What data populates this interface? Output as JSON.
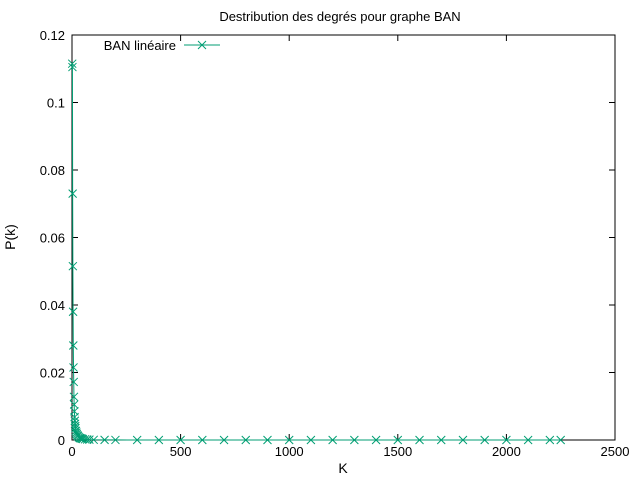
{
  "chart_data": {
    "type": "line",
    "title": "Destribution des degrés pour graphe BAN",
    "xlabel": "K",
    "ylabel": "P(k)",
    "xlim": [
      0,
      2500
    ],
    "ylim": [
      0,
      0.12
    ],
    "xticks": [
      0,
      500,
      1000,
      1500,
      2000,
      2500
    ],
    "xtick_labels": [
      "0",
      "500",
      "1000",
      "1500",
      "2000",
      "2500"
    ],
    "yticks": [
      0,
      0.02,
      0.04,
      0.06,
      0.08,
      0.1,
      0.12
    ],
    "ytick_labels": [
      "0",
      "0.02",
      "0.04",
      "0.06",
      "0.08",
      "0.1",
      "0.12"
    ],
    "legend_position": "top-left",
    "series": [
      {
        "name": "BAN linéaire",
        "color": "#009e73",
        "marker": "x",
        "x": [
          1,
          2,
          3,
          4,
          5,
          6,
          7,
          8,
          9,
          10,
          11,
          12,
          13,
          14,
          15,
          16,
          18,
          20,
          22,
          25,
          28,
          32,
          36,
          40,
          45,
          50,
          60,
          70,
          80,
          100,
          150,
          200,
          300,
          400,
          500,
          600,
          700,
          800,
          900,
          1000,
          1100,
          1200,
          1300,
          1400,
          1500,
          1600,
          1700,
          1800,
          1900,
          2000,
          2100,
          2200,
          2250
        ],
        "y": [
          0.1115,
          0.1105,
          0.073,
          0.0515,
          0.038,
          0.028,
          0.0215,
          0.0172,
          0.0128,
          0.0105,
          0.0085,
          0.0068,
          0.0057,
          0.0048,
          0.0041,
          0.0035,
          0.0027,
          0.0022,
          0.0018,
          0.0014,
          0.0011,
          0.0008,
          0.0006,
          0.0005,
          0.0004,
          0.0003,
          0.0002,
          0.00015,
          0.0001,
          6e-05,
          3e-05,
          2e-05,
          1e-05,
          5e-06,
          4e-06,
          3e-06,
          2e-06,
          2e-06,
          1e-06,
          1e-06,
          1e-06,
          1e-06,
          1e-06,
          1e-06,
          1e-06,
          1e-06,
          1e-06,
          1e-06,
          1e-06,
          1e-06,
          1e-06,
          1e-06,
          1e-06
        ]
      }
    ]
  }
}
